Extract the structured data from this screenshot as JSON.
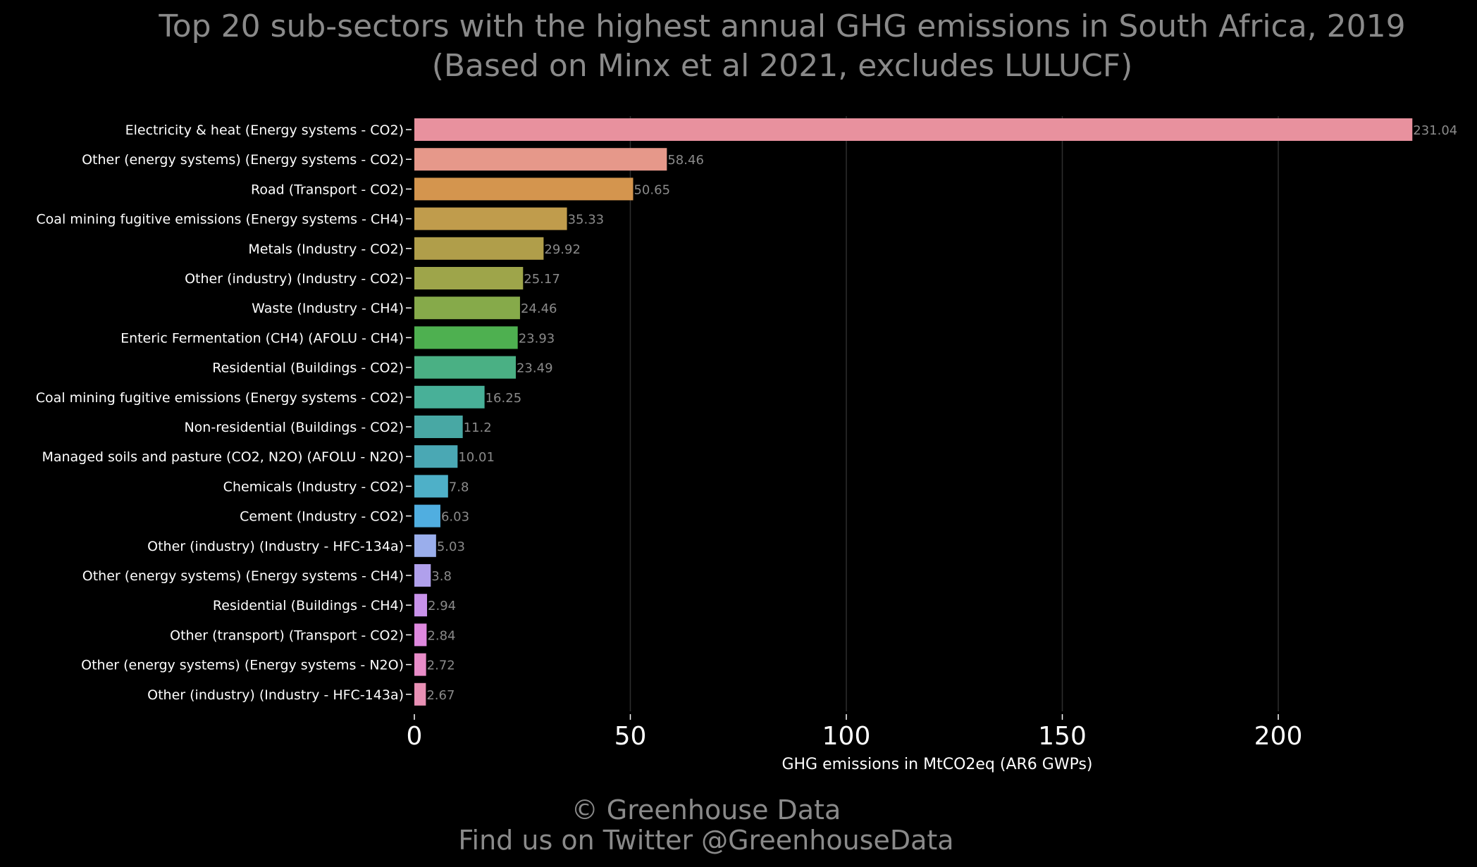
{
  "chart_data": {
    "type": "bar",
    "orientation": "horizontal",
    "title": "Top 20 sub-sectors with the highest annual GHG emissions in South Africa, 2019",
    "subtitle": "(Based on Minx et al 2021, excludes LULUCF)",
    "xlabel": "GHG emissions in MtCO2eq (AR6 GWPs)",
    "ylabel": "",
    "xlim": [
      0,
      240
    ],
    "x_ticks": [
      0,
      50,
      100,
      150,
      200
    ],
    "x_tick_labels": [
      "0",
      "50",
      "100",
      "150",
      "200"
    ],
    "grid": "vertical",
    "categories": [
      "Electricity & heat (Energy systems - CO2)",
      "Other (energy systems) (Energy systems - CO2)",
      "Road (Transport - CO2)",
      "Coal mining fugitive emissions (Energy systems - CH4)",
      "Metals (Industry - CO2)",
      "Other (industry) (Industry - CO2)",
      "Waste (Industry - CH4)",
      "Enteric Fermentation (CH4) (AFOLU - CH4)",
      "Residential (Buildings - CO2)",
      "Coal mining fugitive emissions (Energy systems - CO2)",
      "Non-residential (Buildings - CO2)",
      "Managed soils and pasture (CO2, N2O) (AFOLU - N2O)",
      "Chemicals (Industry - CO2)",
      "Cement (Industry - CO2)",
      "Other (industry) (Industry - HFC-134a)",
      "Other (energy systems) (Energy systems - CH4)",
      "Residential (Buildings - CH4)",
      "Other (transport) (Transport - CO2)",
      "Other (energy systems) (Energy systems - N2O)",
      "Other (industry) (Industry - HFC-143a)"
    ],
    "values": [
      231.04,
      58.46,
      50.65,
      35.33,
      29.92,
      25.17,
      24.46,
      23.93,
      23.49,
      16.25,
      11.2,
      10.01,
      7.8,
      6.03,
      5.03,
      3.8,
      2.94,
      2.84,
      2.72,
      2.67
    ],
    "value_labels": [
      "231.04",
      "58.46",
      "50.65",
      "35.33",
      "29.92",
      "25.17",
      "24.46",
      "23.93",
      "23.49",
      "16.25",
      "11.2",
      "10.01",
      "7.8",
      "6.03",
      "5.03",
      "3.8",
      "2.94",
      "2.84",
      "2.72",
      "2.67"
    ],
    "colors": [
      "#e8919e",
      "#e6988a",
      "#d4954e",
      "#c09c4c",
      "#b09e4a",
      "#9ea54a",
      "#86aa4a",
      "#4eb050",
      "#4ab084",
      "#48b098",
      "#48a8a4",
      "#4aa8b4",
      "#4eb0c8",
      "#50aee0",
      "#9aaeec",
      "#b0a0ec",
      "#c892ea",
      "#de88de",
      "#e88cc8",
      "#e890b4"
    ]
  },
  "footer": {
    "copyright": "© Greenhouse Data",
    "twitter": "Find us on Twitter @GreenhouseData"
  }
}
